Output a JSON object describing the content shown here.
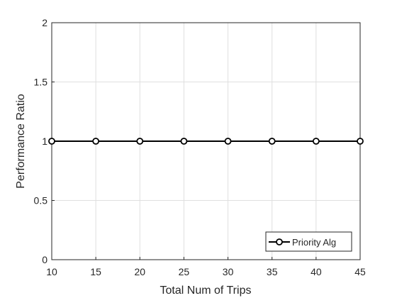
{
  "chart_data": {
    "type": "line",
    "xlabel": "Total Num of Trips",
    "ylabel": "Performance Ratio",
    "xlim": [
      10,
      45
    ],
    "ylim": [
      0,
      2
    ],
    "xticks": [
      "10",
      "15",
      "20",
      "25",
      "30",
      "35",
      "40",
      "45"
    ],
    "yticks": [
      "0",
      "0.5",
      "1",
      "1.5",
      "2"
    ],
    "grid": true,
    "legend_position": "bottom-right",
    "series": [
      {
        "name": "Priority Alg",
        "color": "#000000",
        "marker": "circle",
        "x": [
          10,
          15,
          20,
          25,
          30,
          35,
          40,
          45
        ],
        "y": [
          1,
          1,
          1,
          1,
          1,
          1,
          1,
          1
        ]
      }
    ]
  }
}
